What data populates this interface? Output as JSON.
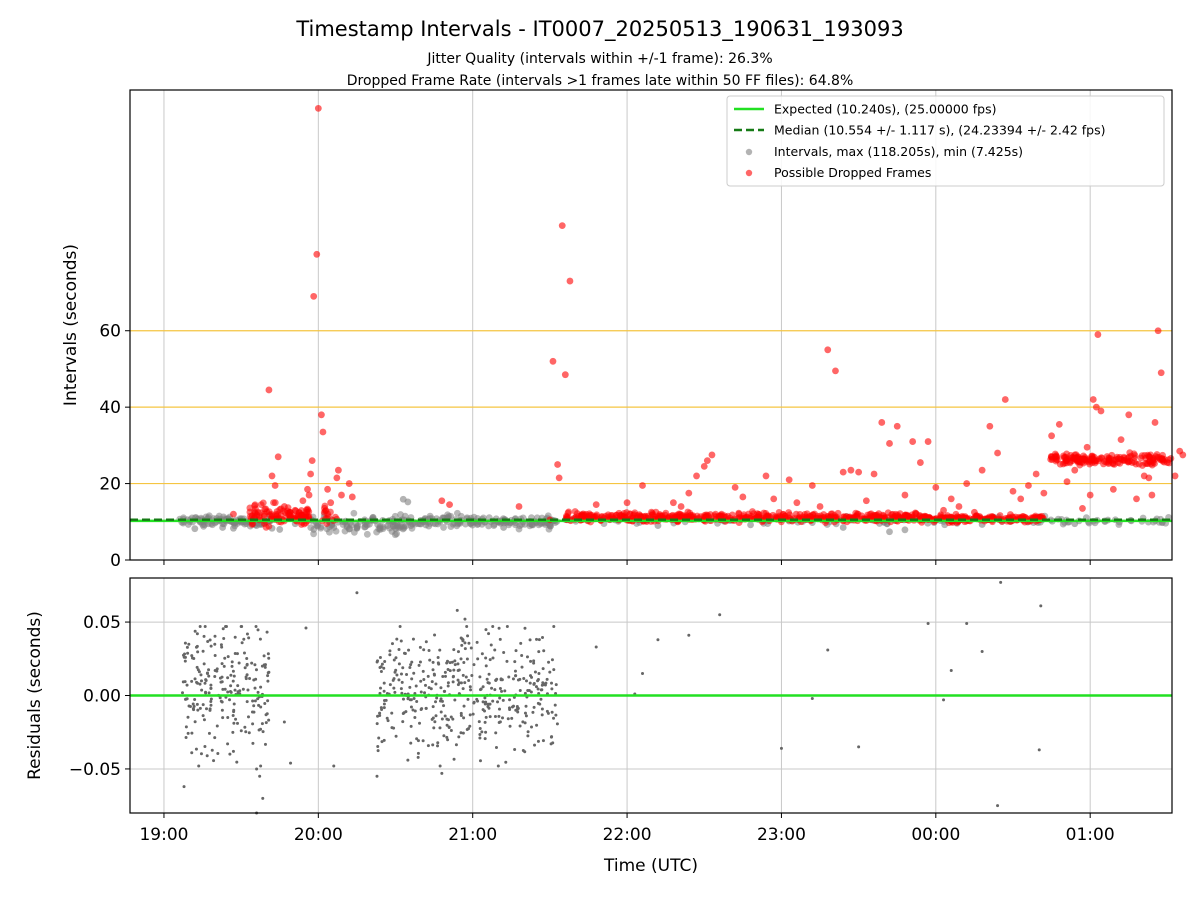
{
  "title": "Timestamp Intervals - IT0007_20250513_190631_193093",
  "subtitle_1": "Jitter Quality (intervals within +/-1 frame): 26.3%",
  "subtitle_2": "Dropped Frame Rate (intervals >1 frames late within 50 FF files): 64.8%",
  "colors": {
    "expected": "#22e022",
    "median": "#157a15",
    "intervals": "#808080",
    "dropped": "#ff0000",
    "threshold": "#f5c542",
    "grid": "#c8c8c8"
  },
  "chart_data": [
    {
      "type": "scatter",
      "ylabel": "Intervals (seconds)",
      "xlabel": "",
      "x_unit": "hours since 19:00 UTC",
      "xlim": [
        -0.22,
        6.53
      ],
      "ylim": [
        0,
        123
      ],
      "yticks": [
        0,
        20,
        40,
        60
      ],
      "grid": true,
      "threshold_lines": [
        20,
        40,
        60
      ],
      "legend_position": "top-right",
      "legend": [
        "Expected (10.240s), (25.00000 fps)",
        "Median (10.554 +/- 1.117 s), (24.23394 +/- 2.42 fps)",
        "Intervals, max (118.205s), min (7.425s)",
        "Possible Dropped Frames"
      ],
      "expected_value": 10.24,
      "median_value": 10.554,
      "series": [
        {
          "name": "Intervals, max (118.205s), min (7.425s)",
          "clusters": [
            {
              "x": [
                0.1,
                0.7
              ],
              "y_center": 10.2,
              "spread": 0.6,
              "count": 110
            },
            {
              "x": [
                0.95,
                1.55
              ],
              "y_center": 9.4,
              "spread": 1.2,
              "count": 90
            },
            {
              "x": [
                1.55,
                2.55
              ],
              "y_center": 10.1,
              "spread": 0.8,
              "count": 160
            },
            {
              "x": [
                2.6,
                6.53
              ],
              "y_center": 10.3,
              "spread": 0.5,
              "count": 140
            }
          ],
          "points": [
            [
              0.2,
              8.2
            ],
            [
              0.38,
              8.5
            ],
            [
              0.45,
              8.3
            ],
            [
              0.6,
              9.0
            ],
            [
              0.7,
              8.3
            ],
            [
              0.75,
              8.0
            ],
            [
              0.85,
              9.5
            ],
            [
              1.1,
              8.5
            ],
            [
              1.2,
              8.1
            ],
            [
              1.25,
              8.3
            ],
            [
              1.3,
              8.6
            ],
            [
              1.4,
              8.0
            ],
            [
              1.45,
              9.0
            ],
            [
              1.5,
              8.2
            ],
            [
              1.55,
              15.9
            ],
            [
              1.58,
              15.2
            ],
            [
              1.6,
              9.0
            ],
            [
              2.2,
              8.5
            ],
            [
              2.5,
              9.5
            ],
            [
              2.85,
              11.0
            ],
            [
              3.2,
              9.0
            ],
            [
              3.8,
              9.2
            ],
            [
              4.2,
              9.8
            ],
            [
              4.4,
              8.5
            ],
            [
              4.7,
              7.4
            ],
            [
              4.8,
              7.9
            ],
            [
              5.3,
              9.3
            ],
            [
              5.9,
              9.5
            ]
          ]
        },
        {
          "name": "Possible Dropped Frames",
          "clusters": [
            {
              "x": [
                0.55,
                0.95
              ],
              "y_center": 11.5,
              "spread": 1.4,
              "count": 110
            },
            {
              "x": [
                1.02,
                1.12
              ],
              "y_center": 11.8,
              "spread": 1.2,
              "count": 15
            },
            {
              "x": [
                2.6,
                4.9
              ],
              "y_center": 11.2,
              "spread": 0.6,
              "count": 480
            },
            {
              "x": [
                4.9,
                5.7
              ],
              "y_center": 10.8,
              "spread": 0.4,
              "count": 200
            },
            {
              "x": [
                5.73,
                6.53
              ],
              "y_center": 26.4,
              "spread": 0.7,
              "count": 170
            }
          ],
          "points": [
            [
              0.45,
              12.0
            ],
            [
              0.65,
              11.5
            ],
            [
              0.68,
              44.5
            ],
            [
              0.7,
              22.0
            ],
            [
              0.72,
              19.5
            ],
            [
              0.74,
              27.0
            ],
            [
              0.78,
              14.0
            ],
            [
              0.85,
              13.0
            ],
            [
              0.9,
              15.5
            ],
            [
              0.93,
              18.5
            ],
            [
              0.94,
              17.0
            ],
            [
              0.95,
              22.5
            ],
            [
              0.96,
              26.0
            ],
            [
              0.97,
              69.0
            ],
            [
              0.99,
              80.0
            ],
            [
              1.0,
              118.2
            ],
            [
              1.02,
              38.0
            ],
            [
              1.03,
              33.5
            ],
            [
              1.06,
              18.5
            ],
            [
              1.08,
              15.0
            ],
            [
              1.12,
              21.5
            ],
            [
              1.13,
              23.5
            ],
            [
              1.15,
              17.0
            ],
            [
              1.2,
              20.0
            ],
            [
              1.22,
              16.5
            ],
            [
              1.8,
              15.5
            ],
            [
              1.85,
              14.5
            ],
            [
              2.3,
              14.0
            ],
            [
              2.5,
              10.5
            ],
            [
              2.52,
              52.0
            ],
            [
              2.55,
              25.0
            ],
            [
              2.56,
              21.5
            ],
            [
              2.58,
              87.5
            ],
            [
              2.6,
              48.5
            ],
            [
              2.63,
              73.0
            ],
            [
              2.8,
              14.5
            ],
            [
              3.0,
              15.0
            ],
            [
              3.1,
              19.5
            ],
            [
              3.3,
              15.0
            ],
            [
              3.35,
              14.0
            ],
            [
              3.4,
              17.5
            ],
            [
              3.45,
              22.0
            ],
            [
              3.5,
              24.5
            ],
            [
              3.52,
              26.0
            ],
            [
              3.55,
              27.5
            ],
            [
              3.7,
              19.0
            ],
            [
              3.75,
              16.5
            ],
            [
              3.9,
              22.0
            ],
            [
              3.95,
              16.0
            ],
            [
              4.05,
              21.0
            ],
            [
              4.1,
              15.0
            ],
            [
              4.2,
              19.5
            ],
            [
              4.25,
              14.0
            ],
            [
              4.3,
              55.0
            ],
            [
              4.35,
              49.5
            ],
            [
              4.4,
              23.0
            ],
            [
              4.45,
              23.5
            ],
            [
              4.5,
              23.0
            ],
            [
              4.55,
              15.5
            ],
            [
              4.6,
              22.5
            ],
            [
              4.65,
              36.0
            ],
            [
              4.7,
              30.5
            ],
            [
              4.75,
              35.0
            ],
            [
              4.8,
              17.0
            ],
            [
              4.85,
              31.0
            ],
            [
              4.9,
              25.5
            ],
            [
              4.95,
              31.0
            ],
            [
              5.0,
              19.0
            ],
            [
              5.05,
              13.0
            ],
            [
              5.1,
              16.0
            ],
            [
              5.15,
              14.0
            ],
            [
              5.2,
              20.0
            ],
            [
              5.25,
              12.5
            ],
            [
              5.3,
              23.5
            ],
            [
              5.35,
              35.0
            ],
            [
              5.4,
              28.0
            ],
            [
              5.45,
              42.0
            ],
            [
              5.5,
              18.0
            ],
            [
              5.55,
              16.0
            ],
            [
              5.6,
              19.5
            ],
            [
              5.65,
              22.5
            ],
            [
              5.7,
              17.5
            ],
            [
              5.75,
              32.5
            ],
            [
              5.8,
              35.5
            ],
            [
              5.85,
              20.5
            ],
            [
              5.9,
              23.5
            ],
            [
              5.95,
              13.5
            ],
            [
              5.98,
              29.5
            ],
            [
              6.0,
              17.0
            ],
            [
              6.02,
              42.0
            ],
            [
              6.04,
              40.0
            ],
            [
              6.05,
              59.0
            ],
            [
              6.07,
              39.0
            ],
            [
              6.15,
              18.5
            ],
            [
              6.2,
              31.5
            ],
            [
              6.25,
              38.0
            ],
            [
              6.3,
              16.0
            ],
            [
              6.35,
              22.0
            ],
            [
              6.38,
              21.5
            ],
            [
              6.4,
              17.0
            ],
            [
              6.42,
              36.0
            ],
            [
              6.44,
              60.0
            ],
            [
              6.46,
              49.0
            ],
            [
              6.5,
              25.5
            ],
            [
              6.55,
              22.0
            ],
            [
              6.58,
              28.5
            ],
            [
              6.6,
              27.5
            ]
          ]
        }
      ]
    },
    {
      "type": "scatter",
      "ylabel": "Residuals (seconds)",
      "xlabel": "Time (UTC)",
      "x_unit": "hours since 19:00 UTC",
      "xlim": [
        -0.22,
        6.53
      ],
      "ylim": [
        -0.08,
        0.08
      ],
      "yticks": [
        0.05,
        0.0,
        -0.05
      ],
      "ytick_labels": [
        "0.05",
        "0.00",
        "−0.05"
      ],
      "xticks": [
        0,
        1,
        2,
        3,
        4,
        5,
        6
      ],
      "xtick_labels": [
        "19:00",
        "20:00",
        "21:00",
        "22:00",
        "23:00",
        "00:00",
        "01:00"
      ],
      "grid": true,
      "zero_line": 0.0,
      "series": [
        {
          "name": "",
          "clusters": [
            {
              "x": [
                0.12,
                0.68
              ],
              "y_center": 0.005,
              "spread": 0.022,
              "count": 230
            },
            {
              "x": [
                1.38,
                2.55
              ],
              "y_center": 0.003,
              "spread": 0.021,
              "count": 430
            }
          ],
          "points": [
            [
              0.13,
              -0.062
            ],
            [
              0.18,
              -0.039
            ],
            [
              0.28,
              -0.041
            ],
            [
              0.45,
              -0.038
            ],
            [
              0.6,
              -0.05
            ],
            [
              0.62,
              -0.055
            ],
            [
              0.64,
              -0.07
            ],
            [
              0.6,
              -0.08
            ],
            [
              0.78,
              -0.018
            ],
            [
              0.82,
              -0.046
            ],
            [
              0.92,
              0.046
            ],
            [
              1.1,
              -0.048
            ],
            [
              1.25,
              0.07
            ],
            [
              1.38,
              -0.055
            ],
            [
              1.58,
              -0.044
            ],
            [
              1.8,
              -0.053
            ],
            [
              1.9,
              0.058
            ],
            [
              1.95,
              0.052
            ],
            [
              2.8,
              0.033
            ],
            [
              3.05,
              0.001
            ],
            [
              3.1,
              0.015
            ],
            [
              3.2,
              0.038
            ],
            [
              3.4,
              0.041
            ],
            [
              3.6,
              0.055
            ],
            [
              4.0,
              -0.036
            ],
            [
              4.2,
              -0.002
            ],
            [
              4.3,
              0.031
            ],
            [
              4.5,
              -0.035
            ],
            [
              4.95,
              0.049
            ],
            [
              5.05,
              -0.003
            ],
            [
              5.1,
              0.017
            ],
            [
              5.2,
              0.049
            ],
            [
              5.3,
              0.03
            ],
            [
              5.4,
              -0.075
            ],
            [
              5.42,
              0.077
            ],
            [
              5.67,
              -0.037
            ],
            [
              5.68,
              0.061
            ]
          ]
        }
      ]
    }
  ]
}
